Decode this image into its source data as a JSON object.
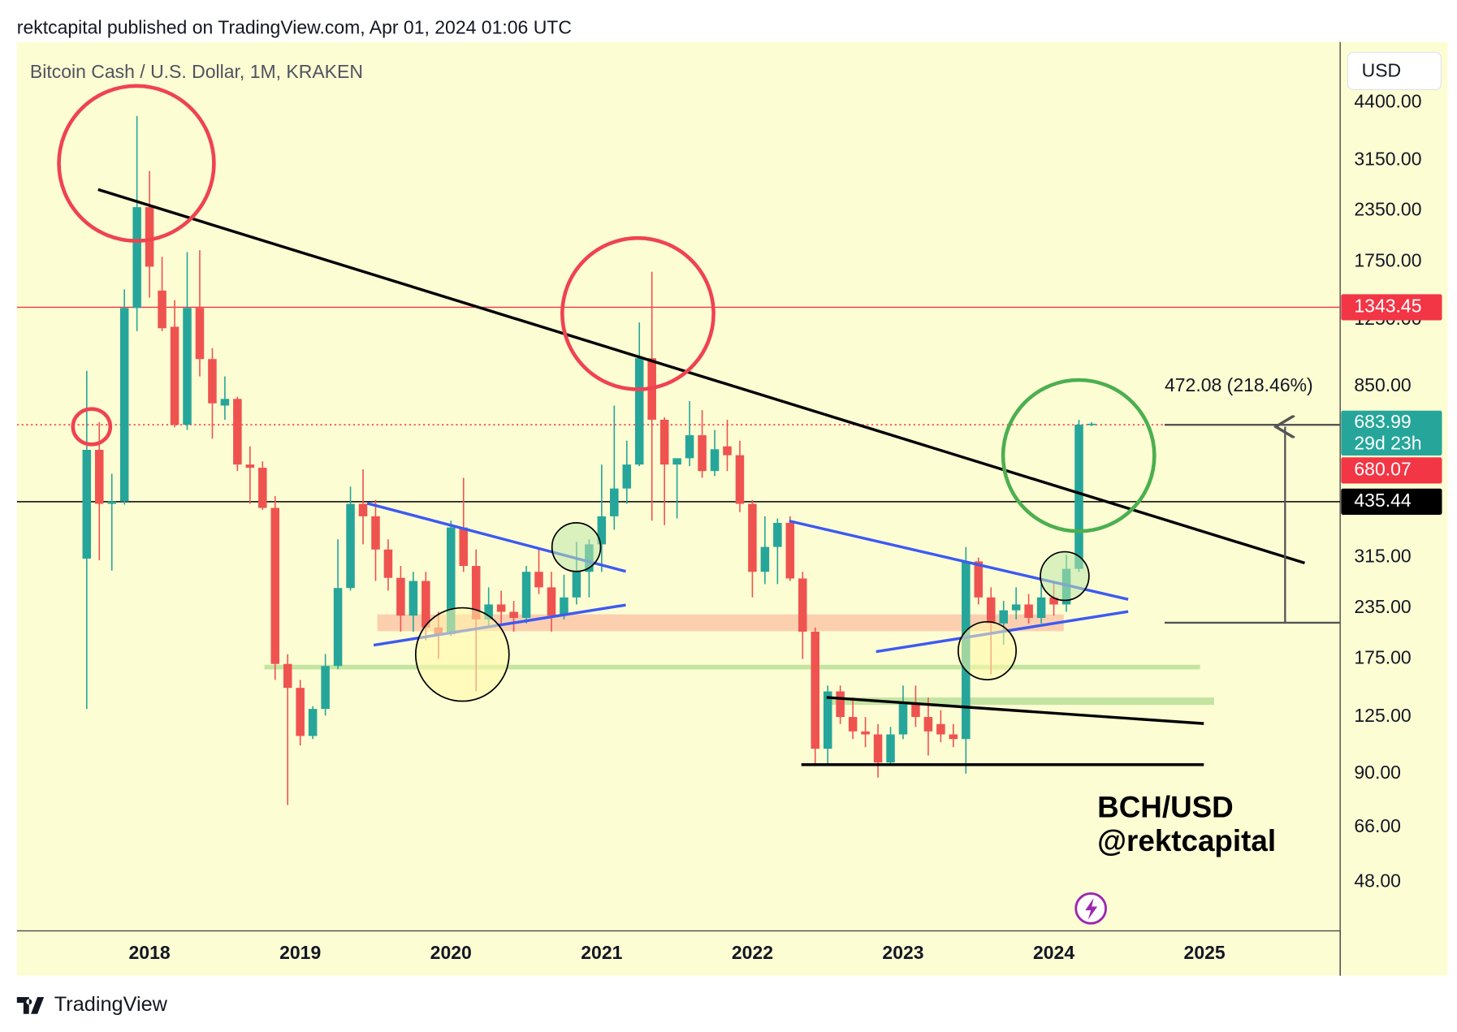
{
  "header": "rektcapital published on TradingView.com, Apr 01, 2024 01:06 UTC",
  "brand": "TradingView",
  "chart_data": {
    "type": "candlestick",
    "title": "Bitcoin Cash / U.S. Dollar, 1M, KRAKEN",
    "currency": "USD",
    "log_scale": true,
    "grid": false,
    "up_color": "#26a69a",
    "down_color": "#ef5350",
    "x": [
      2017.5833,
      2017.6667,
      2017.75,
      2017.8333,
      2017.9167,
      2018,
      2018.0833,
      2018.1667,
      2018.25,
      2018.3333,
      2018.4167,
      2018.5,
      2018.5833,
      2018.6667,
      2018.75,
      2018.8333,
      2018.9167,
      2019,
      2019.0833,
      2019.1667,
      2019.25,
      2019.3333,
      2019.4167,
      2019.5,
      2019.5833,
      2019.6667,
      2019.75,
      2019.8333,
      2019.9167,
      2020,
      2020.0833,
      2020.1667,
      2020.25,
      2020.3333,
      2020.4167,
      2020.5,
      2020.5833,
      2020.6667,
      2020.75,
      2020.8333,
      2020.9167,
      2021,
      2021.0833,
      2021.1667,
      2021.25,
      2021.3333,
      2021.4167,
      2021.5,
      2021.5833,
      2021.6667,
      2021.75,
      2021.8333,
      2021.9167,
      2022,
      2022.0833,
      2022.1667,
      2022.25,
      2022.3333,
      2022.4167,
      2022.5,
      2022.5833,
      2022.6667,
      2022.75,
      2022.8333,
      2022.9167,
      2023,
      2023.0833,
      2023.1667,
      2023.25,
      2023.3333,
      2023.4167,
      2023.5,
      2023.5833,
      2023.6667,
      2023.75,
      2023.8333,
      2023.9167,
      2024,
      2024.0833,
      2024.1667,
      2024.25
    ],
    "open": [
      313,
      588,
      430,
      436,
      1338,
      2400,
      1480,
      1200,
      680,
      1338,
      995,
      760,
      790,
      540,
      530,
      420,
      170,
      148,
      112,
      131,
      168,
      264,
      430,
      400,
      330,
      280,
      225,
      275,
      210,
      202,
      375,
      300,
      220,
      240,
      230,
      222,
      290,
      265,
      225,
      250,
      290,
      340,
      400,
      470,
      540,
      1000,
      700,
      540,
      560,
      640,
      520,
      600,
      570,
      430,
      290,
      335,
      385,
      279,
      205,
      104,
      145,
      125,
      115,
      113,
      96,
      113,
      135,
      125,
      120,
      113,
      110,
      308,
      250,
      215,
      232,
      240,
      222,
      250,
      240,
      295,
      680.07
    ],
    "high": [
      930,
      690,
      512,
      1490,
      4070,
      2960,
      1800,
      1400,
      1850,
      1870,
      1060,
      900,
      800,
      600,
      550,
      450,
      180,
      155,
      133,
      180,
      350,
      475,
      525,
      440,
      350,
      300,
      290,
      290,
      230,
      390,
      500,
      330,
      265,
      260,
      245,
      300,
      330,
      290,
      285,
      345,
      350,
      540,
      760,
      620,
      1230,
      1650,
      710,
      560,
      780,
      740,
      660,
      700,
      620,
      440,
      400,
      395,
      400,
      290,
      210,
      150,
      150,
      140,
      125,
      120,
      118,
      150,
      150,
      140,
      130,
      120,
      335,
      315,
      265,
      245,
      265,
      255,
      270,
      275,
      320,
      700,
      690
    ],
    "low": [
      131,
      310,
      292,
      428,
      1170,
      1420,
      1170,
      670,
      660,
      900,
      627,
      700,
      520,
      430,
      415,
      155,
      75,
      106,
      110,
      126,
      165,
      260,
      340,
      275,
      260,
      205,
      205,
      195,
      175,
      200,
      290,
      145,
      210,
      215,
      205,
      215,
      255,
      205,
      220,
      240,
      250,
      290,
      370,
      430,
      535,
      390,
      380,
      395,
      535,
      500,
      505,
      520,
      410,
      250,
      270,
      270,
      275,
      175,
      95,
      95,
      120,
      110,
      105,
      88,
      95,
      110,
      118,
      100,
      108,
      105,
      90,
      240,
      160,
      190,
      220,
      215,
      215,
      225,
      230,
      290,
      675
    ],
    "close": [
      588,
      430,
      436,
      1338,
      2400,
      1700,
      1190,
      680,
      1338,
      995,
      770,
      790,
      540,
      530,
      420,
      170,
      148,
      112,
      131,
      168,
      264,
      430,
      400,
      330,
      280,
      225,
      275,
      210,
      202,
      375,
      300,
      220,
      240,
      230,
      222,
      290,
      265,
      225,
      250,
      290,
      340,
      400,
      470,
      540,
      1000,
      700,
      540,
      560,
      640,
      520,
      590,
      570,
      430,
      290,
      335,
      385,
      279,
      205,
      104,
      145,
      125,
      115,
      113,
      96,
      113,
      135,
      125,
      115,
      113,
      110,
      308,
      250,
      215,
      232,
      240,
      222,
      250,
      240,
      295,
      680.07,
      683.99
    ],
    "xlim": [
      2017.12,
      2025.9
    ],
    "xticks": [
      2018,
      2019,
      2020,
      2021,
      2022,
      2023,
      2024,
      2025
    ],
    "ylim": [
      36.2,
      6250
    ],
    "yticks": [
      {
        "value": 4400,
        "label": "4400.00"
      },
      {
        "value": 3150,
        "label": "3150.00"
      },
      {
        "value": 2350,
        "label": "2350.00"
      },
      {
        "value": 1750,
        "label": "1750.00"
      },
      {
        "value": 1250,
        "label": "1250.00"
      },
      {
        "value": 850,
        "label": "850.00"
      },
      {
        "value": 315,
        "label": "315.00"
      },
      {
        "value": 235,
        "label": "235.00"
      },
      {
        "value": 175,
        "label": "175.00"
      },
      {
        "value": 125,
        "label": "125.00"
      },
      {
        "value": 90,
        "label": "90.00"
      },
      {
        "value": 66,
        "label": "66.00"
      },
      {
        "value": 48,
        "label": "48.00"
      }
    ],
    "last_price": {
      "value": 683.99,
      "countdown": "29d 23h",
      "color": "#26a69a"
    },
    "price_lines": [
      {
        "value": 1343.45,
        "color": "#f23645",
        "line": "solid"
      },
      {
        "value": 680.07,
        "color": "#f23645",
        "line": "dotted"
      },
      {
        "value": 435.44,
        "color": "#000000",
        "line": "solid"
      }
    ],
    "annotations": [
      "472.08 (218.46%)",
      "BCH/USD",
      "@rektcapital"
    ]
  }
}
